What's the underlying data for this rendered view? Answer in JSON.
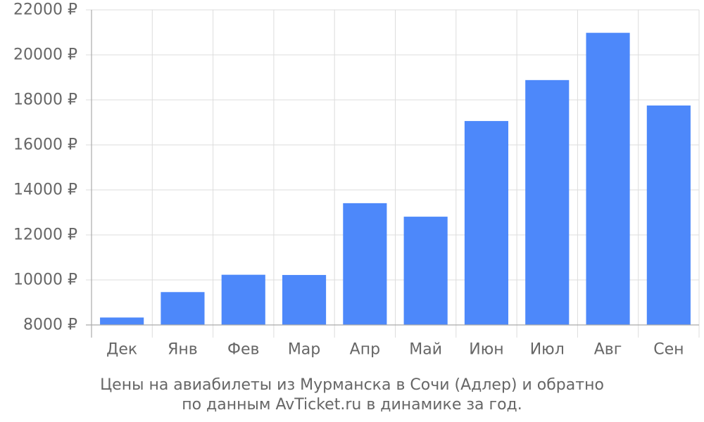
{
  "chart_data": {
    "type": "bar",
    "categories": [
      "Дек",
      "Янв",
      "Фев",
      "Мар",
      "Апр",
      "Май",
      "Июн",
      "Июл",
      "Авг",
      "Сен"
    ],
    "values": [
      8330,
      9460,
      10230,
      10220,
      13410,
      12810,
      17060,
      18880,
      20980,
      17750
    ],
    "ylim": [
      8000,
      22000
    ],
    "y_ticks": [
      8000,
      10000,
      12000,
      14000,
      16000,
      18000,
      20000,
      22000
    ],
    "y_tick_labels": [
      "8000 ₽",
      "10000 ₽",
      "12000 ₽",
      "14000 ₽",
      "16000 ₽",
      "18000 ₽",
      "20000 ₽",
      "22000 ₽"
    ],
    "grid": true,
    "bar_color": "#4d88fa",
    "grid_color": "#dddddd",
    "axis_color": "#aaaaaa",
    "label_color": "#666666"
  },
  "caption": {
    "line1": "Цены на авиабилеты из Мурманска в Сочи (Адлер) и обратно",
    "line2": "по данным AvTicket.ru в динамике за год."
  }
}
